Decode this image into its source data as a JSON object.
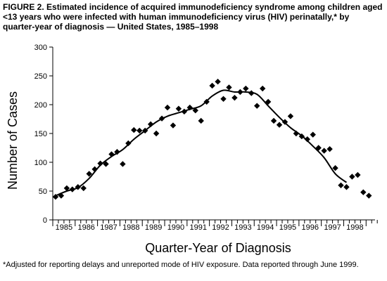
{
  "figure": {
    "title": "FIGURE 2. Estimated incidence of acquired immunodeficiency syndrome among children aged <13 years who were infected with human immunodeficiency virus (HIV) perinatally,* by quarter-year of diagnosis — United States, 1985–1998",
    "footnote": "*Adjusted for reporting delays and unreported mode of HIV exposure. Data reported through June 1999."
  },
  "chart_data": {
    "type": "scatter",
    "xlabel": "Quarter-Year of Diagnosis",
    "ylabel": "Number of Cases",
    "ylim": [
      0,
      300
    ],
    "yticks": [
      0,
      50,
      100,
      150,
      200,
      250,
      300
    ],
    "year_labels": [
      "1985",
      "1986",
      "1987",
      "1988",
      "1989",
      "1990",
      "1991",
      "1992",
      "1993",
      "1994",
      "1995",
      "1996",
      "1997",
      "1998"
    ],
    "grid": false,
    "legend": "none",
    "series": [
      {
        "marker": "diamond",
        "x": [
          "1985 Q1",
          "1985 Q2",
          "1985 Q3",
          "1985 Q4",
          "1986 Q1",
          "1986 Q2",
          "1986 Q3",
          "1986 Q4",
          "1987 Q1",
          "1987 Q2",
          "1987 Q3",
          "1987 Q4",
          "1988 Q1",
          "1988 Q2",
          "1988 Q3",
          "1988 Q4",
          "1989 Q1",
          "1989 Q2",
          "1989 Q3",
          "1989 Q4",
          "1990 Q1",
          "1990 Q2",
          "1990 Q3",
          "1990 Q4",
          "1991 Q1",
          "1991 Q2",
          "1991 Q3",
          "1991 Q4",
          "1992 Q1",
          "1992 Q2",
          "1992 Q3",
          "1992 Q4",
          "1993 Q1",
          "1993 Q2",
          "1993 Q3",
          "1993 Q4",
          "1994 Q1",
          "1994 Q2",
          "1994 Q3",
          "1994 Q4",
          "1995 Q1",
          "1995 Q2",
          "1995 Q3",
          "1995 Q4",
          "1996 Q1",
          "1996 Q2",
          "1996 Q3",
          "1996 Q4",
          "1997 Q1",
          "1997 Q2",
          "1997 Q3",
          "1997 Q4",
          "1998 Q1",
          "1998 Q2",
          "1998 Q3",
          "1998 Q4"
        ],
        "values": [
          40,
          42,
          55,
          53,
          57,
          55,
          80,
          88,
          98,
          97,
          114,
          118,
          97,
          133,
          156,
          155,
          155,
          166,
          150,
          176,
          195,
          164,
          193,
          188,
          195,
          190,
          172,
          205,
          233,
          240,
          210,
          230,
          212,
          222,
          228,
          220,
          198,
          228,
          205,
          172,
          165,
          170,
          180,
          150,
          145,
          140,
          148,
          125,
          120,
          123,
          90,
          60,
          57,
          75,
          78,
          48
        ]
      },
      {
        "name": "",
        "type": "line",
        "x": [
          "1985 Q1",
          "1985 Q3",
          "1986 Q1",
          "1986 Q3",
          "1987 Q1",
          "1987 Q3",
          "1988 Q1",
          "1988 Q3",
          "1989 Q1",
          "1989 Q3",
          "1990 Q1",
          "1990 Q3",
          "1991 Q1",
          "1991 Q3",
          "1992 Q1",
          "1992 Q3",
          "1993 Q1",
          "1993 Q3",
          "1994 Q1",
          "1994 Q3",
          "1995 Q1",
          "1995 Q3",
          "1996 Q1",
          "1996 Q3",
          "1997 Q1",
          "1997 Q3",
          "1998 Q1"
        ],
        "values": [
          42,
          50,
          56,
          72,
          95,
          110,
          122,
          140,
          155,
          170,
          180,
          186,
          192,
          198,
          215,
          225,
          222,
          222,
          218,
          198,
          178,
          160,
          146,
          128,
          108,
          80,
          65
        ]
      }
    ],
    "extra_points": [
      {
        "x": "1998 Q4+",
        "value": 42
      }
    ]
  }
}
